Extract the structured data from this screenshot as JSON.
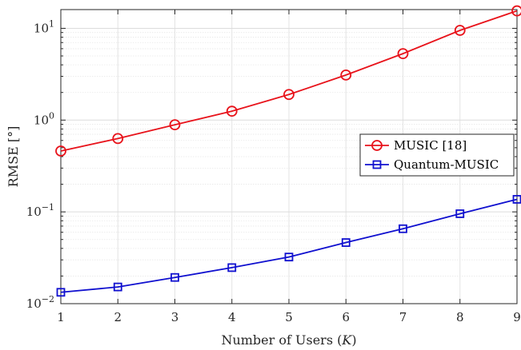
{
  "chart_data": {
    "type": "line",
    "title": "",
    "xlabel": "Number of Users (K)",
    "xlabel_parts": [
      "Number of Users (",
      "K",
      ")"
    ],
    "ylabel": "RMSE [°]",
    "x": [
      1,
      2,
      3,
      4,
      5,
      6,
      7,
      8,
      9
    ],
    "xlim": [
      1,
      9
    ],
    "ylim": [
      0.01,
      16
    ],
    "yscale": "log",
    "grid": true,
    "minor_grid": true,
    "legend_position": "center-right",
    "x_tick_labels": [
      "1",
      "2",
      "3",
      "4",
      "5",
      "6",
      "7",
      "8",
      "9"
    ],
    "y_ticks": [
      {
        "value": 0.01,
        "base": "10",
        "exp": "−2"
      },
      {
        "value": 0.1,
        "base": "10",
        "exp": "−1"
      },
      {
        "value": 1,
        "base": "10",
        "exp": "0"
      },
      {
        "value": 10,
        "base": "10",
        "exp": "1"
      }
    ],
    "series": [
      {
        "name": "MUSIC [18]",
        "color": "#e8131b",
        "marker": "circle",
        "values": [
          0.46,
          0.63,
          0.89,
          1.25,
          1.9,
          3.1,
          5.3,
          9.5,
          15.5
        ]
      },
      {
        "name": "Quantum-MUSIC",
        "color": "#1010cf",
        "marker": "square",
        "values": [
          0.0133,
          0.0152,
          0.0193,
          0.0247,
          0.0322,
          0.0463,
          0.0655,
          0.0955,
          0.137
        ]
      }
    ]
  }
}
